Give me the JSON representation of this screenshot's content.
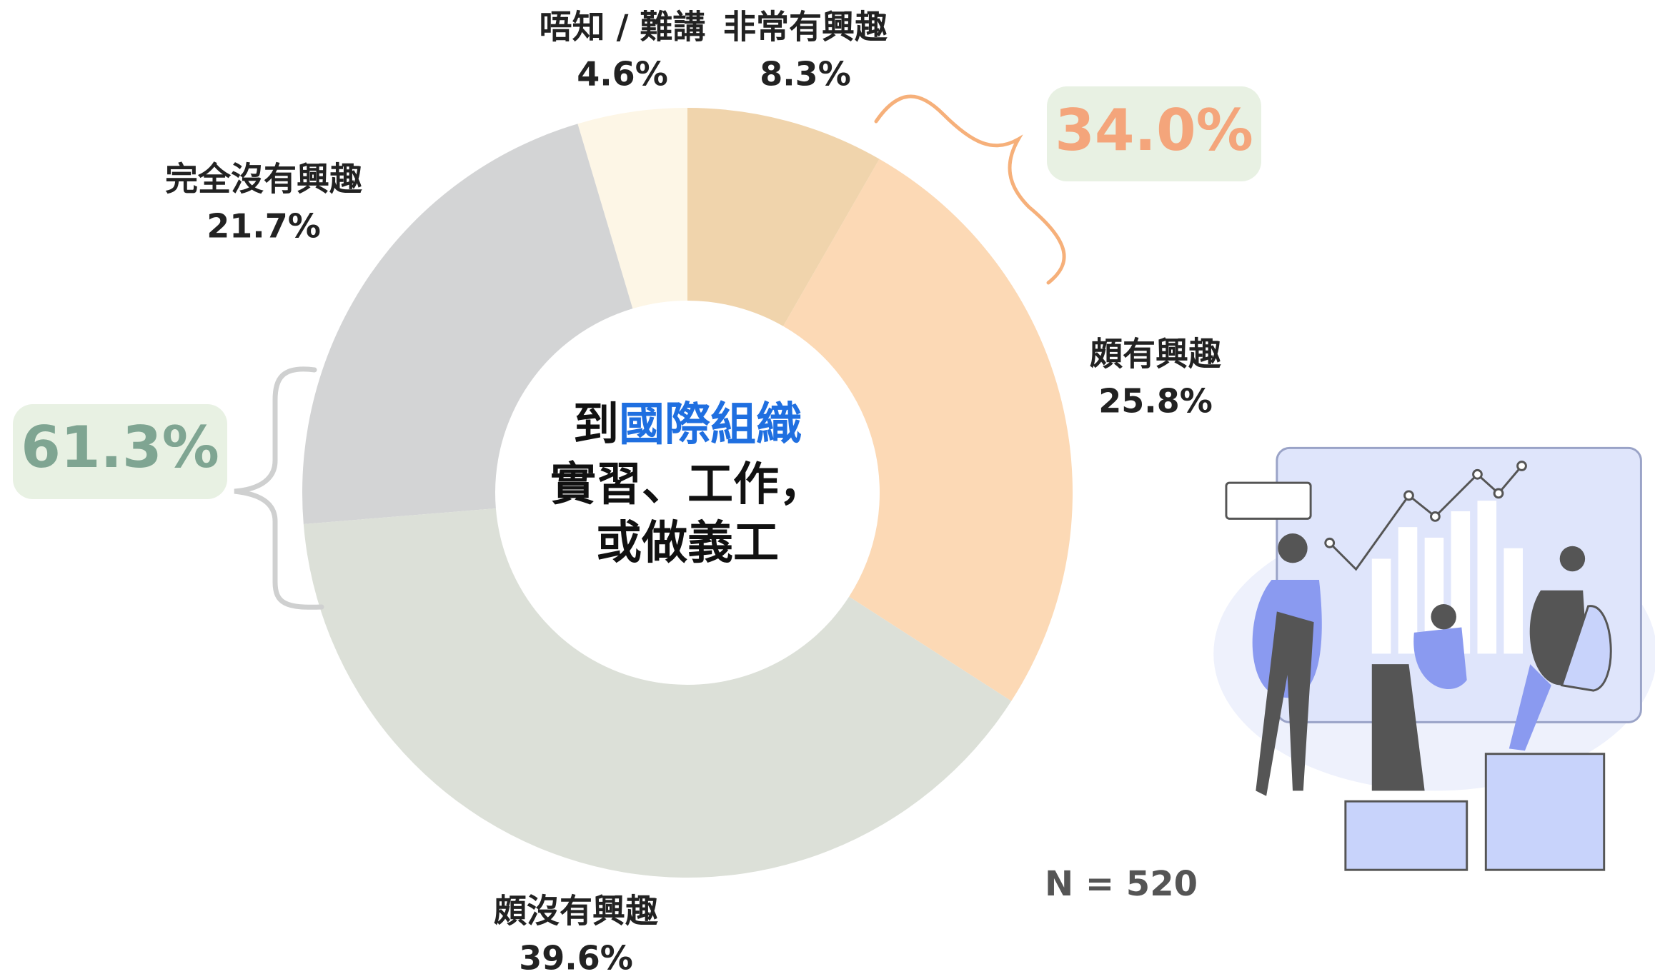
{
  "chart_data": {
    "type": "donut",
    "center_text": [
      [
        "到",
        "國際組織"
      ],
      [
        "實習、工作，"
      ],
      [
        "或做義工"
      ]
    ],
    "categories": [
      "非常有興趣",
      "頗有興趣",
      "頗沒有興趣",
      "完全沒有興趣",
      "唔知 / 難講"
    ],
    "values": [
      8.3,
      25.8,
      39.6,
      21.7,
      4.6
    ],
    "value_labels": [
      "8.3%",
      "25.8%",
      "39.6%",
      "21.7%",
      "4.6%"
    ],
    "colors": [
      "#f0d4ac",
      "#fcd9b5",
      "#dce0d8",
      "#d3d4d5",
      "#fdf6e6"
    ],
    "annotations": [
      {
        "text": "34.0%",
        "color": "#f4a57b"
      },
      {
        "text": "61.3%",
        "color": "#7fa592"
      }
    ],
    "note": "N = 520"
  }
}
